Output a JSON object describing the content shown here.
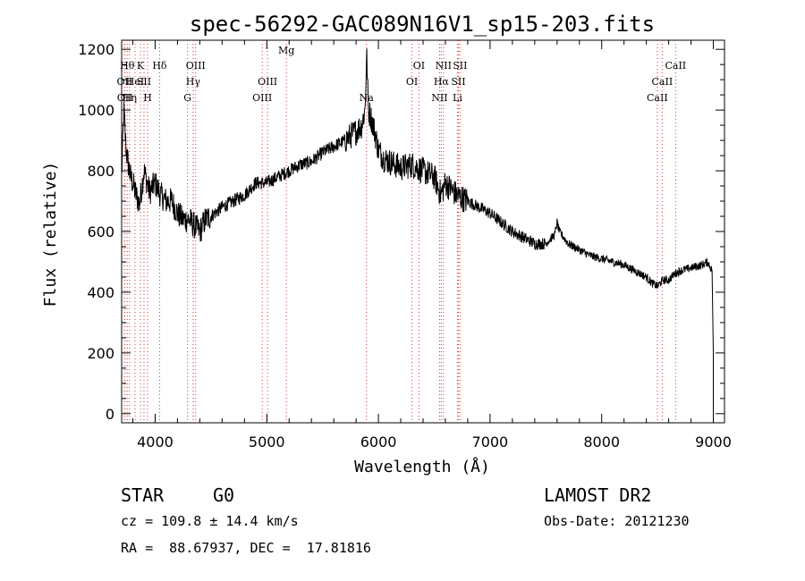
{
  "chart_data": {
    "type": "line",
    "title": "spec-56292-GAC089N16V1_sp15-203.fits",
    "xlabel": "Wavelength (Å)",
    "ylabel": "Flux (relative)",
    "xlim": [
      3700,
      9100
    ],
    "ylim": [
      -30,
      1230
    ],
    "x_ticks": [
      4000,
      5000,
      6000,
      7000,
      8000,
      9000
    ],
    "y_ticks": [
      0,
      200,
      400,
      600,
      800,
      1000,
      1200
    ],
    "grid": false,
    "series": [
      {
        "x": [
          3700,
          3720,
          3740,
          3760,
          3780,
          3800,
          3830,
          3860,
          3900,
          3950,
          4000,
          4050,
          4100,
          4150,
          4200,
          4250,
          4300,
          4350,
          4400,
          4450,
          4500,
          4600,
          4700,
          4800,
          4900,
          5000,
          5100,
          5200,
          5300,
          5400,
          5500,
          5600,
          5700,
          5800,
          5850,
          5880,
          5895,
          5910,
          5930,
          5960,
          6000,
          6050,
          6100,
          6200,
          6300,
          6400,
          6500,
          6560,
          6600,
          6700,
          6800,
          6900,
          7000,
          7100,
          7200,
          7300,
          7400,
          7500,
          7580,
          7600,
          7620,
          7700,
          7800,
          7900,
          8000,
          8100,
          8200,
          8300,
          8400,
          8450,
          8500,
          8550,
          8600,
          8650,
          8700,
          8800,
          8900,
          8950,
          8990,
          9000
        ],
        "y": [
          780,
          1000,
          870,
          820,
          780,
          760,
          720,
          690,
          800,
          730,
          760,
          720,
          700,
          700,
          660,
          640,
          640,
          620,
          600,
          640,
          650,
          680,
          700,
          720,
          760,
          760,
          780,
          800,
          820,
          830,
          860,
          880,
          900,
          930,
          950,
          1000,
          1180,
          1000,
          980,
          940,
          870,
          840,
          830,
          810,
          820,
          800,
          780,
          720,
          760,
          720,
          700,
          680,
          660,
          630,
          600,
          580,
          560,
          560,
          590,
          630,
          600,
          560,
          540,
          520,
          510,
          500,
          490,
          470,
          450,
          430,
          420,
          440,
          440,
          460,
          470,
          480,
          490,
          500,
          470,
          200
        ]
      }
    ],
    "line_markers": [
      {
        "wave": 3727,
        "label": "OII",
        "row": 2
      },
      {
        "wave": 3729,
        "label": "OII",
        "row": 3
      },
      {
        "wave": 3750,
        "label": "Hθ",
        "row": 1
      },
      {
        "wave": 3771,
        "label": "Hη",
        "row": 3
      },
      {
        "wave": 3820,
        "label": "HeI",
        "row": 2
      },
      {
        "wave": 3868,
        "label": "K",
        "row": 1
      },
      {
        "wave": 3900,
        "label": "SII",
        "row": 2
      },
      {
        "wave": 3933,
        "label": "H",
        "row": 3
      },
      {
        "wave": 4040,
        "label": "Hδ",
        "row": 1
      },
      {
        "wave": 4290,
        "label": "G",
        "row": 3
      },
      {
        "wave": 4340,
        "label": "Hγ",
        "row": 2
      },
      {
        "wave": 4363,
        "label": "OIII",
        "row": 1
      },
      {
        "wave": 4959,
        "label": "OIII",
        "row": 3
      },
      {
        "wave": 5007,
        "label": "OIII",
        "row": 2
      },
      {
        "wave": 5175,
        "label": "Mg",
        "row": 0
      },
      {
        "wave": 5893,
        "label": "Na",
        "row": 3
      },
      {
        "wave": 6300,
        "label": "OI",
        "row": 2
      },
      {
        "wave": 6363,
        "label": "OI",
        "row": 1
      },
      {
        "wave": 6548,
        "label": "NII",
        "row": 3
      },
      {
        "wave": 6563,
        "label": "Hα",
        "row": 2
      },
      {
        "wave": 6583,
        "label": "NII",
        "row": 1
      },
      {
        "wave": 6708,
        "label": "Li",
        "row": 3
      },
      {
        "wave": 6716,
        "label": "SII",
        "row": 2
      },
      {
        "wave": 6731,
        "label": "SII",
        "row": 1
      },
      {
        "wave": 8498,
        "label": "CaII",
        "row": 3
      },
      {
        "wave": 8542,
        "label": "CaII",
        "row": 2
      },
      {
        "wave": 8662,
        "label": "CaII",
        "row": 1
      }
    ]
  },
  "info": {
    "class": "STAR",
    "subclass": "G0",
    "survey": "LAMOST DR2",
    "cz": "cz = 109.8 ± 14.4 km/s",
    "obs_date": "Obs-Date: 20121230",
    "coords": "RA =  88.67937, DEC =  17.81816"
  }
}
